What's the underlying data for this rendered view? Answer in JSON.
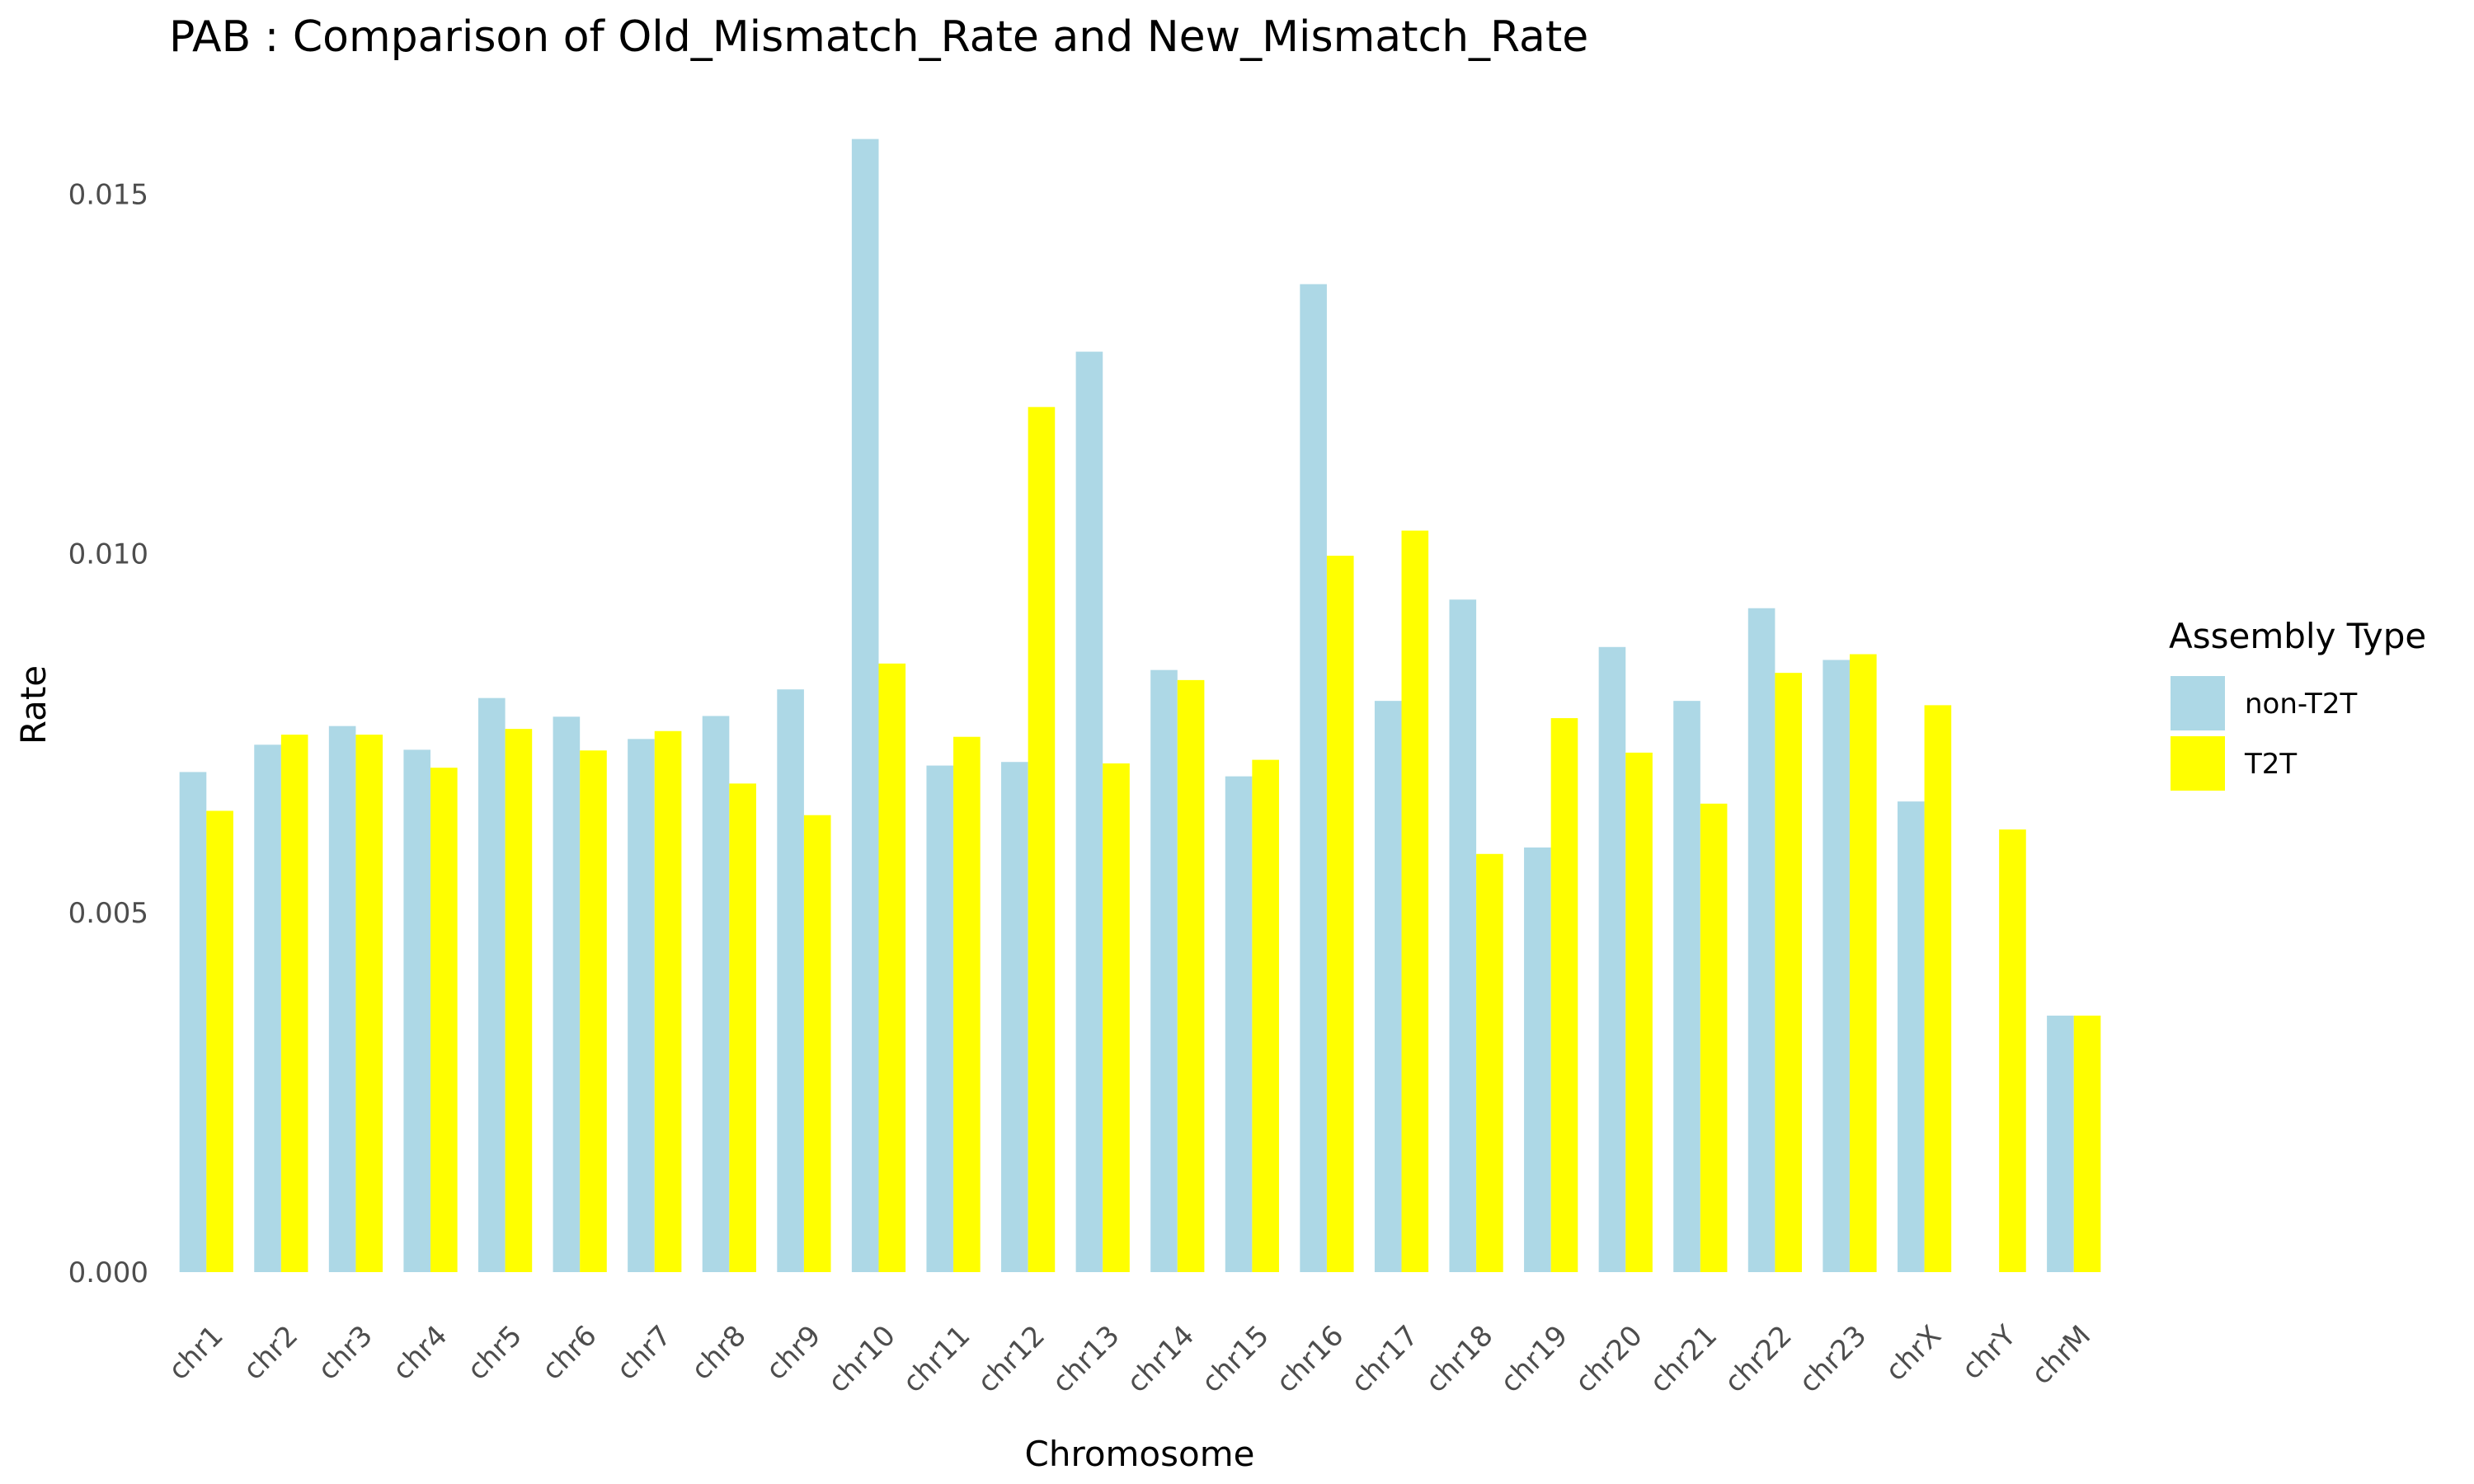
{
  "chart_data": {
    "type": "bar",
    "title": "PAB : Comparison of Old_Mismatch_Rate and New_Mismatch_Rate",
    "xlabel": "Chromosome",
    "ylabel": "Rate",
    "ylim": [
      0,
      0.0158
    ],
    "yticks": [
      0.0,
      0.005,
      0.01,
      0.015
    ],
    "ytick_labels": [
      "0.000",
      "0.005",
      "0.010",
      "0.015"
    ],
    "grid": false,
    "legend": {
      "title": "Assembly Type",
      "placement": "right"
    },
    "categories": [
      "chr1",
      "chr2",
      "chr3",
      "chr4",
      "chr5",
      "chr6",
      "chr7",
      "chr8",
      "chr9",
      "chr10",
      "chr11",
      "chr12",
      "chr13",
      "chr14",
      "chr15",
      "chr16",
      "chr17",
      "chr18",
      "chr19",
      "chr20",
      "chr21",
      "chr22",
      "chr23",
      "chrX",
      "chrY",
      "chrM"
    ],
    "series": [
      {
        "name": "non-T2T",
        "color": "#add8e6",
        "values": [
          0.00696,
          0.00734,
          0.0076,
          0.00727,
          0.00799,
          0.00773,
          0.00742,
          0.00774,
          0.00811,
          0.01577,
          0.00705,
          0.0071,
          0.01281,
          0.00838,
          0.0069,
          0.01375,
          0.00795,
          0.00936,
          0.00591,
          0.0087,
          0.00795,
          0.00924,
          0.00852,
          0.00655,
          null,
          0.00357
        ]
      },
      {
        "name": "T2T",
        "color": "#ffff00",
        "values": [
          0.00642,
          0.00748,
          0.00748,
          0.00702,
          0.00756,
          0.00726,
          0.00753,
          0.0068,
          0.00636,
          0.00847,
          0.00745,
          0.01204,
          0.00708,
          0.00824,
          0.00713,
          0.00997,
          0.01032,
          0.00582,
          0.00771,
          0.00723,
          0.00652,
          0.00834,
          0.0086,
          0.00789,
          0.00616,
          0.00357
        ]
      }
    ]
  }
}
